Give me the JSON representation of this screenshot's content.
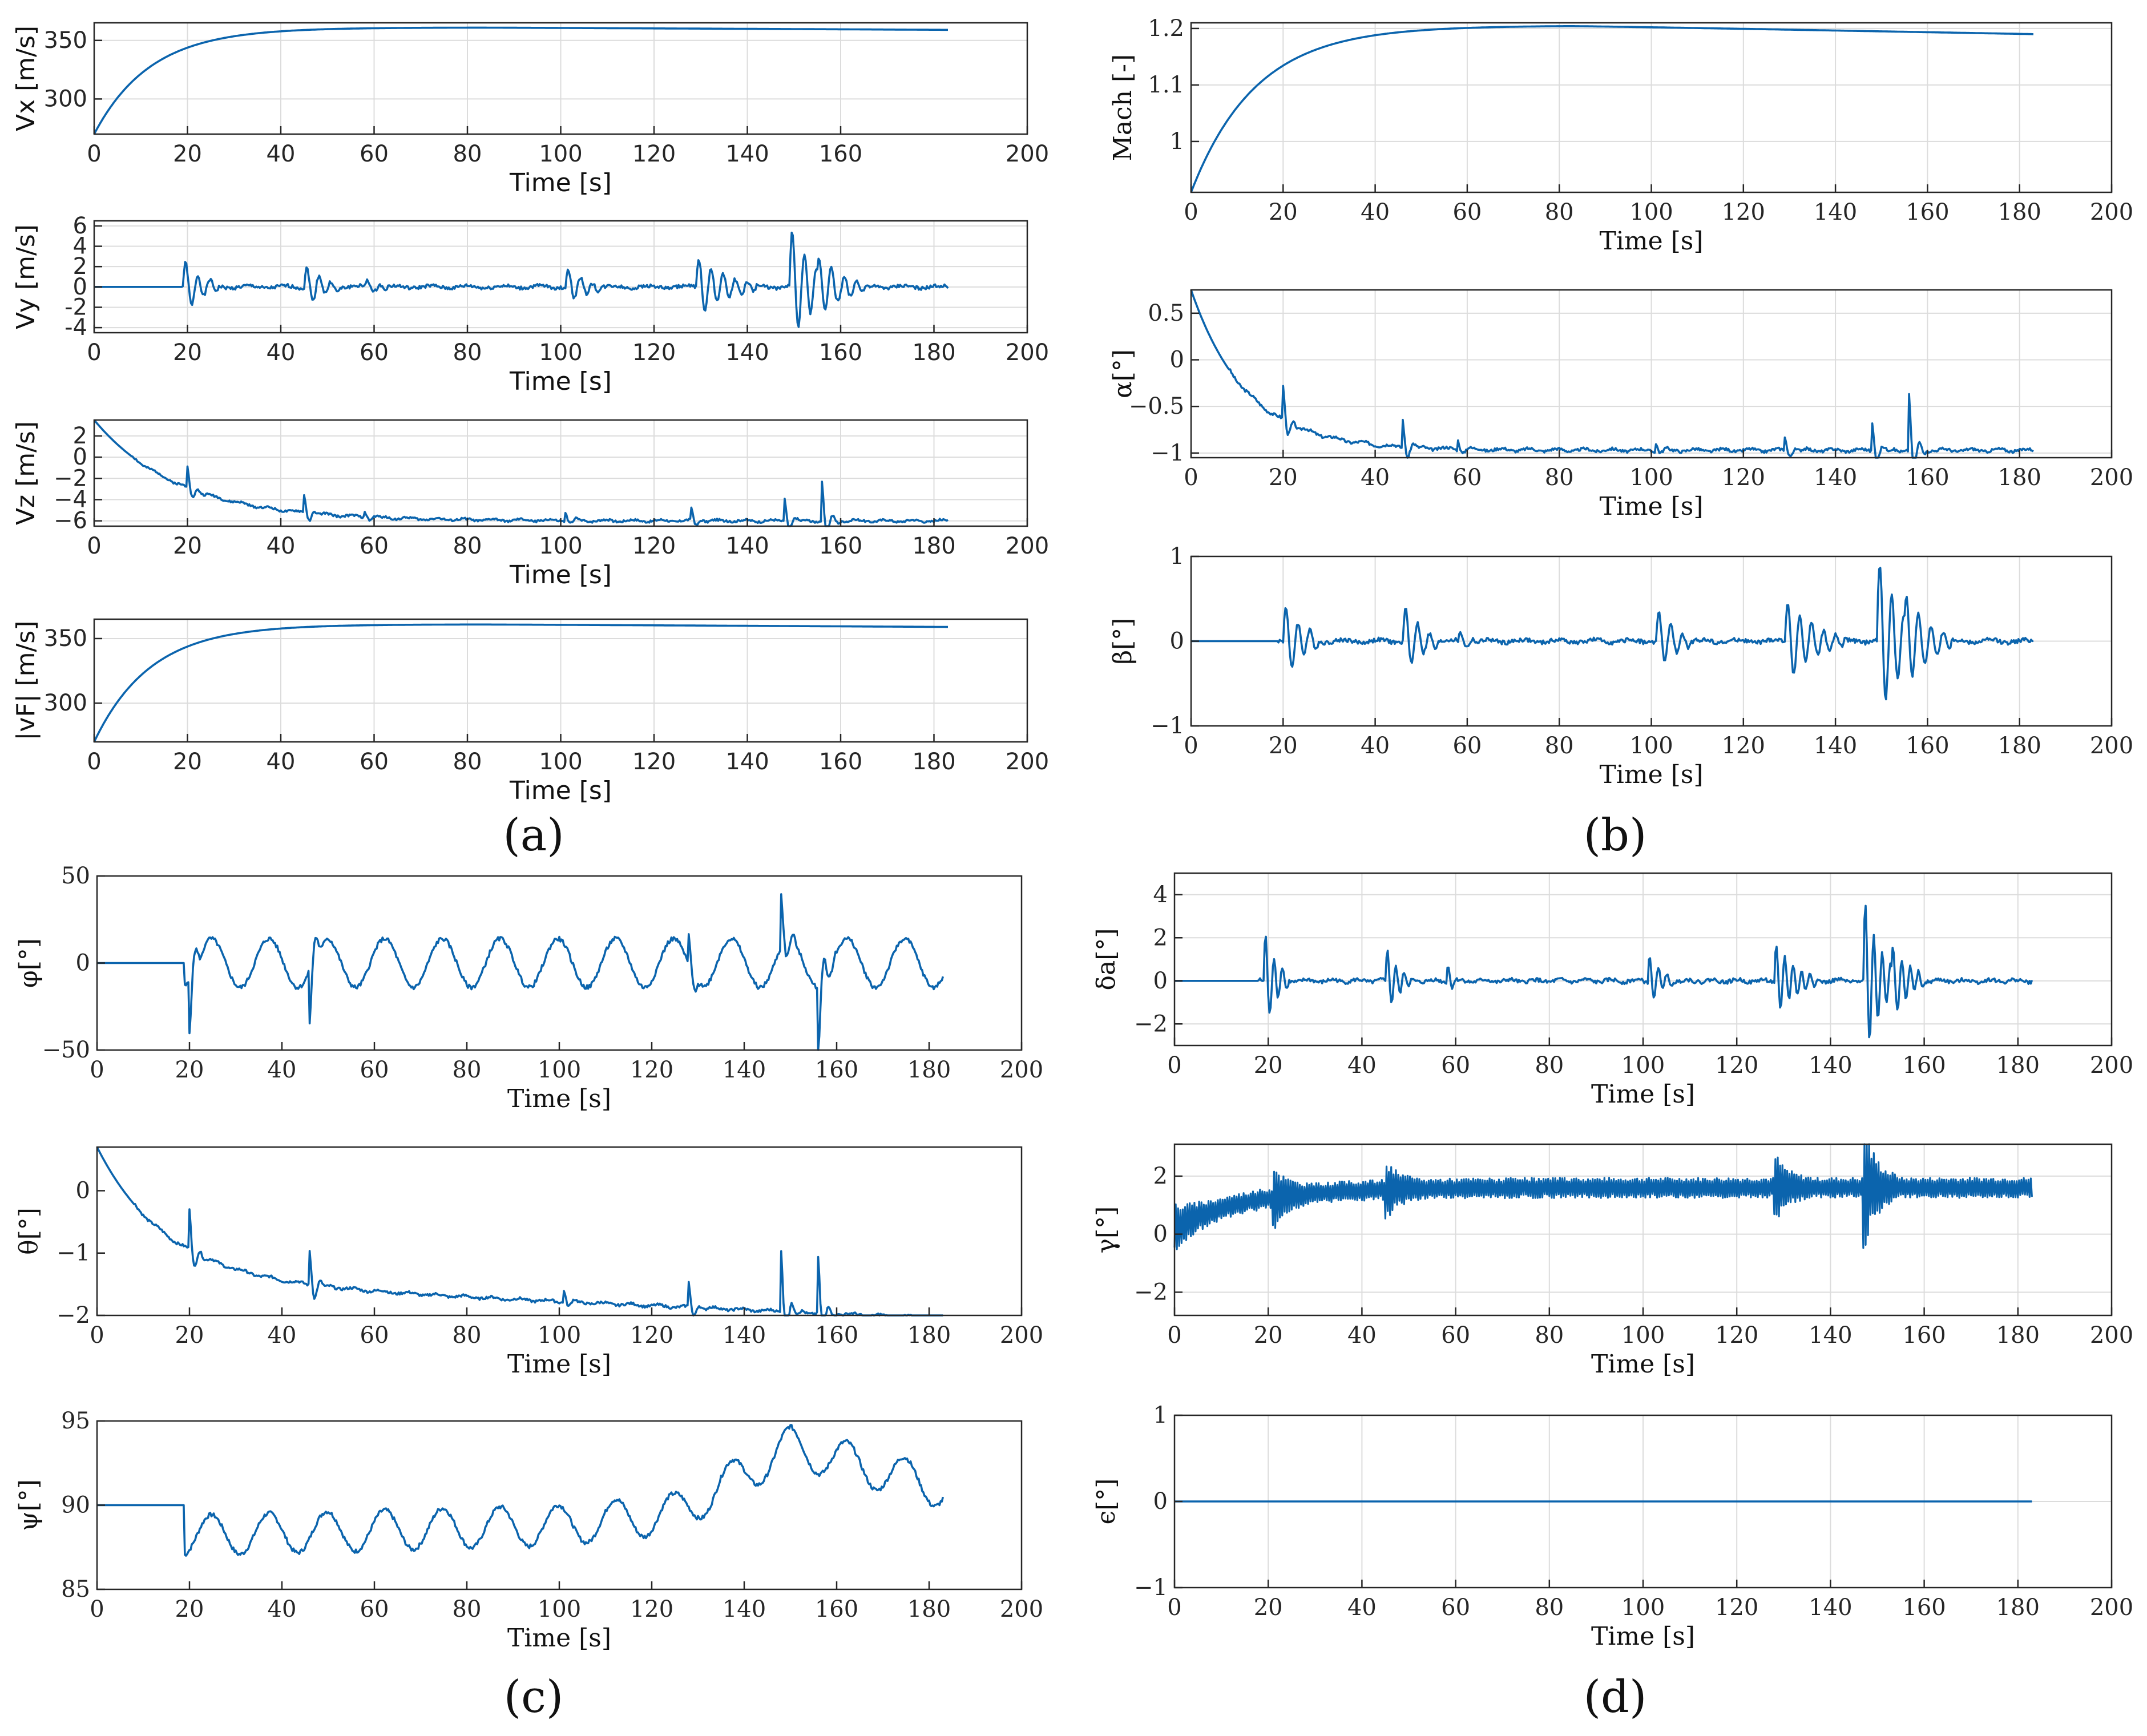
{
  "figure": {
    "line_color": "#0b64ad",
    "grid_color": "#dcdcdc",
    "axis_color": "#262626",
    "panel_labels": [
      "(a)",
      "(b)",
      "(c)",
      "(d)"
    ]
  },
  "chart_data": [
    {
      "id": "vx",
      "panel": "a",
      "type": "line",
      "font": "sans",
      "ylabel": "Vx [m/s]",
      "xlabel": "Time [s]",
      "xlim": [
        0,
        200
      ],
      "ylim": [
        270,
        365
      ],
      "xticks": [
        0,
        20,
        40,
        60,
        80,
        100,
        120,
        140,
        160,
        200
      ],
      "xtick_labels": [
        "0",
        "20",
        "40",
        "60",
        "80",
        "100",
        "120",
        "140",
        "160",
        "200"
      ],
      "yticks": [
        300,
        350
      ],
      "ytick_labels": [
        "300",
        "350"
      ],
      "grid": true,
      "series": {
        "kind": "exp",
        "y0": 270,
        "yinf": 361,
        "tau": 12,
        "t1": 183,
        "end": 359,
        "samples": "0–183 s smooth exponential rise"
      }
    },
    {
      "id": "vy",
      "panel": "a",
      "type": "line",
      "font": "sans",
      "ylabel": "Vy [m/s]",
      "xlabel": "Time [s]",
      "xlim": [
        0,
        200
      ],
      "ylim": [
        -4.5,
        6.5
      ],
      "xticks": [
        0,
        20,
        40,
        60,
        80,
        100,
        120,
        140,
        160,
        180,
        200
      ],
      "xtick_labels": [
        "0",
        "20",
        "40",
        "60",
        "80",
        "100",
        "120",
        "140",
        "160",
        "180",
        "200"
      ],
      "yticks": [
        -4,
        -2,
        0,
        2,
        4,
        6
      ],
      "ytick_labels": [
        "-4",
        "-2",
        "0",
        "2",
        "4",
        "6"
      ],
      "grid": true,
      "series": {
        "kind": "osc",
        "base": 0,
        "t0": 19,
        "t1": 183,
        "seed": 1,
        "noise": 0.35,
        "period": 2.6,
        "bursts": [
          [
            19,
            2.8,
            3
          ],
          [
            45,
            2.3,
            3
          ],
          [
            58,
            0.9,
            2
          ],
          [
            101,
            2.0,
            3
          ],
          [
            129,
            3.0,
            5
          ],
          [
            149,
            6.0,
            4
          ],
          [
            155,
            3.2,
            4
          ]
        ]
      }
    },
    {
      "id": "vz",
      "panel": "a",
      "type": "line",
      "font": "sans",
      "ylabel": "Vz [m/s]",
      "xlabel": "Time [s]",
      "xlim": [
        0,
        200
      ],
      "ylim": [
        -6.5,
        3.5
      ],
      "xticks": [
        0,
        20,
        40,
        60,
        80,
        100,
        120,
        140,
        160,
        180,
        200
      ],
      "xtick_labels": [
        "0",
        "20",
        "40",
        "60",
        "80",
        "100",
        "120",
        "140",
        "160",
        "180",
        "200"
      ],
      "yticks": [
        -6,
        -4,
        -2,
        0,
        2
      ],
      "ytick_labels": [
        "−6",
        "−4",
        "−2",
        "0",
        "2"
      ],
      "grid": true,
      "series": {
        "kind": "settle",
        "start": 3.5,
        "steady": -6,
        "tau": 18,
        "t1": 183,
        "seed": 2,
        "noise": 0.2,
        "period": 6,
        "spikes": [
          [
            20,
            2
          ],
          [
            45,
            1.7
          ],
          [
            58,
            0.6
          ],
          [
            101,
            0.8
          ],
          [
            128,
            1.2
          ],
          [
            148,
            2.2
          ],
          [
            156,
            3.6
          ]
        ]
      }
    },
    {
      "id": "vf",
      "panel": "a",
      "type": "line",
      "font": "sans",
      "ylabel": "|vF| [m/s]",
      "xlabel": "Time [s]",
      "xlim": [
        0,
        200
      ],
      "ylim": [
        270,
        365
      ],
      "xticks": [
        0,
        20,
        40,
        60,
        80,
        100,
        120,
        140,
        160,
        180,
        200
      ],
      "xtick_labels": [
        "0",
        "20",
        "40",
        "60",
        "80",
        "100",
        "120",
        "140",
        "160",
        "180",
        "200"
      ],
      "yticks": [
        300,
        350
      ],
      "ytick_labels": [
        "300",
        "350"
      ],
      "grid": true,
      "series": {
        "kind": "exp",
        "y0": 270,
        "yinf": 361,
        "tau": 12,
        "t1": 183,
        "end": 359
      }
    },
    {
      "id": "mach",
      "panel": "b",
      "type": "line",
      "font": "serif",
      "ylabel": "Mach [-]",
      "xlabel": "Time [s]",
      "xlim": [
        0,
        200
      ],
      "ylim": [
        0.91,
        1.21
      ],
      "xticks": [
        0,
        20,
        40,
        60,
        80,
        100,
        120,
        140,
        160,
        180,
        200
      ],
      "xtick_labels": [
        "0",
        "20",
        "40",
        "60",
        "80",
        "100",
        "120",
        "140",
        "160",
        "180",
        "200"
      ],
      "yticks": [
        1,
        1.1,
        1.2
      ],
      "ytick_labels": [
        "1",
        "1.1",
        "1.2"
      ],
      "grid": true,
      "series": {
        "kind": "exp",
        "y0": 0.91,
        "yinf": 1.205,
        "tau": 14,
        "t1": 183,
        "end": 1.19
      }
    },
    {
      "id": "alpha",
      "panel": "b",
      "type": "line",
      "font": "serif",
      "ylabel": "α[°]",
      "xlabel": "Time [s]",
      "xlim": [
        0,
        200
      ],
      "ylim": [
        -1.05,
        0.75
      ],
      "xticks": [
        0,
        20,
        40,
        60,
        80,
        100,
        120,
        140,
        160,
        180,
        200
      ],
      "xtick_labels": [
        "0",
        "20",
        "40",
        "60",
        "80",
        "100",
        "120",
        "140",
        "160",
        "180",
        "200"
      ],
      "yticks": [
        -1,
        -0.5,
        0,
        0.5
      ],
      "ytick_labels": [
        "−1",
        "−0.5",
        "0",
        "0.5"
      ],
      "grid": true,
      "series": {
        "kind": "settle",
        "start": 0.75,
        "steady": -0.97,
        "tau": 12,
        "t1": 183,
        "seed": 3,
        "noise": 0.03,
        "period": 6,
        "spikes": [
          [
            20,
            0.35
          ],
          [
            46,
            0.3
          ],
          [
            58,
            0.1
          ],
          [
            101,
            0.08
          ],
          [
            129,
            0.15
          ],
          [
            148,
            0.3
          ],
          [
            156,
            0.6
          ]
        ]
      }
    },
    {
      "id": "beta",
      "panel": "b",
      "type": "line",
      "font": "serif",
      "ylabel": "β[°]",
      "xlabel": "Time [s]",
      "xlim": [
        0,
        200
      ],
      "ylim": [
        -1,
        1
      ],
      "xticks": [
        0,
        20,
        40,
        60,
        80,
        100,
        120,
        140,
        160,
        180,
        200
      ],
      "xtick_labels": [
        "0",
        "20",
        "40",
        "60",
        "80",
        "100",
        "120",
        "140",
        "160",
        "180",
        "200"
      ],
      "yticks": [
        -1,
        0,
        1
      ],
      "ytick_labels": [
        "−1",
        "0",
        "1"
      ],
      "grid": true,
      "series": {
        "kind": "osc",
        "base": 0,
        "t0": 19,
        "t1": 183,
        "seed": 4,
        "noise": 0.05,
        "period": 2.6,
        "bursts": [
          [
            20,
            0.5,
            3
          ],
          [
            46,
            0.45,
            3
          ],
          [
            58,
            0.12,
            2
          ],
          [
            101,
            0.4,
            3
          ],
          [
            129,
            0.5,
            5
          ],
          [
            149,
            1.0,
            4
          ],
          [
            155,
            0.6,
            4
          ]
        ]
      }
    },
    {
      "id": "phi",
      "panel": "c",
      "type": "line",
      "font": "serif",
      "ylabel": "φ[°]",
      "xlabel": "Time [s]",
      "xlim": [
        0,
        200
      ],
      "ylim": [
        -50,
        50
      ],
      "xticks": [
        0,
        20,
        40,
        60,
        80,
        100,
        120,
        140,
        160,
        180,
        200
      ],
      "xtick_labels": [
        "0",
        "20",
        "40",
        "60",
        "80",
        "100",
        "120",
        "140",
        "160",
        "180",
        "200"
      ],
      "yticks": [
        -50,
        0,
        50
      ],
      "ytick_labels": [
        "−50",
        "0",
        "50"
      ],
      "grid": false,
      "series": {
        "kind": "wave",
        "base": 0,
        "amp": 14,
        "period": 12.5,
        "t0": 19,
        "t1": 183,
        "seed": 5,
        "noise": 2.5,
        "spikes": [
          [
            20,
            -30
          ],
          [
            46,
            -30
          ],
          [
            128,
            18
          ],
          [
            148,
            30
          ],
          [
            156,
            -40
          ]
        ]
      }
    },
    {
      "id": "theta",
      "panel": "c",
      "type": "line",
      "font": "serif",
      "ylabel": "θ[°]",
      "xlabel": "Time [s]",
      "xlim": [
        0,
        200
      ],
      "ylim": [
        -2,
        0.7
      ],
      "xticks": [
        0,
        20,
        40,
        60,
        80,
        100,
        120,
        140,
        160,
        180,
        200
      ],
      "xtick_labels": [
        "0",
        "20",
        "40",
        "60",
        "80",
        "100",
        "120",
        "140",
        "160",
        "180",
        "200"
      ],
      "yticks": [
        -2,
        -1,
        0
      ],
      "ytick_labels": [
        "−2",
        "−1",
        "0"
      ],
      "grid": false,
      "series": {
        "kind": "settle",
        "start": 0.7,
        "steady": -1.45,
        "tau": 15,
        "t1": 183,
        "seed": 6,
        "noise": 0.04,
        "period": 6,
        "drift": -0.6,
        "spikes": [
          [
            20,
            0.65
          ],
          [
            46,
            0.55
          ],
          [
            101,
            0.2
          ],
          [
            128,
            0.4
          ],
          [
            148,
            1.0
          ],
          [
            156,
            0.9
          ]
        ]
      }
    },
    {
      "id": "psi",
      "panel": "c",
      "type": "line",
      "font": "serif",
      "ylabel": "ψ[°]",
      "xlabel": "Time [s]",
      "xlim": [
        0,
        200
      ],
      "ylim": [
        85,
        95
      ],
      "xticks": [
        0,
        20,
        40,
        60,
        80,
        100,
        120,
        140,
        160,
        180,
        200
      ],
      "xtick_labels": [
        "0",
        "20",
        "40",
        "60",
        "80",
        "100",
        "120",
        "140",
        "160",
        "180",
        "200"
      ],
      "yticks": [
        85,
        90,
        95
      ],
      "ytick_labels": [
        "85",
        "90",
        "95"
      ],
      "grid": false,
      "series": {
        "kind": "wave",
        "base": 88.2,
        "amp": 1.2,
        "period": 12.5,
        "t0": 19,
        "t1": 183,
        "seed": 7,
        "noise": 0.25,
        "start": 90,
        "trend": [
          [
            20,
            88.2
          ],
          [
            100,
            88.8
          ],
          [
            125,
            89.5
          ],
          [
            150,
            93.5
          ],
          [
            183,
            91
          ]
        ]
      }
    },
    {
      "id": "delta_a",
      "panel": "d",
      "type": "line",
      "font": "serif",
      "ylabel": "δa[°]",
      "xlabel": "Time [s]",
      "xlim": [
        0,
        200
      ],
      "ylim": [
        -3,
        5
      ],
      "xticks": [
        0,
        20,
        40,
        60,
        80,
        100,
        120,
        140,
        160,
        180,
        200
      ],
      "xtick_labels": [
        "0",
        "20",
        "40",
        "60",
        "80",
        "100",
        "120",
        "140",
        "160",
        "180",
        "200"
      ],
      "yticks": [
        -2,
        0,
        2,
        4
      ],
      "ytick_labels": [
        "−2",
        "0",
        "2",
        "4"
      ],
      "grid": true,
      "series": {
        "kind": "osc",
        "base": 0,
        "t0": 18,
        "t1": 183,
        "seed": 8,
        "noise": 0.18,
        "period": 1.8,
        "bursts": [
          [
            19,
            2.5,
            3
          ],
          [
            45,
            1.6,
            3
          ],
          [
            58,
            1.2,
            1
          ],
          [
            101,
            1.4,
            3
          ],
          [
            128,
            1.8,
            5
          ],
          [
            147,
            4.0,
            4
          ],
          [
            153,
            2.0,
            4
          ]
        ]
      }
    },
    {
      "id": "gamma",
      "panel": "d",
      "type": "line",
      "font": "serif",
      "ylabel": "γ[°]",
      "xlabel": "Time [s]",
      "xlim": [
        0,
        200
      ],
      "ylim": [
        -2.8,
        3.1
      ],
      "xticks": [
        0,
        20,
        40,
        60,
        80,
        100,
        120,
        140,
        160,
        180,
        200
      ],
      "xtick_labels": [
        "0",
        "20",
        "40",
        "60",
        "80",
        "100",
        "120",
        "140",
        "160",
        "180",
        "200"
      ],
      "yticks": [
        -2,
        0,
        2
      ],
      "ytick_labels": [
        "−2",
        "0",
        "2"
      ],
      "grid": true,
      "series": {
        "kind": "band",
        "t1": 183,
        "seed": 9,
        "steady": 1.6,
        "start": 0.2,
        "tau": 15,
        "width": 0.35,
        "bursts": [
          [
            21,
            1.0
          ],
          [
            45,
            0.8
          ],
          [
            128,
            1.0
          ],
          [
            147,
            2.2
          ]
        ]
      }
    },
    {
      "id": "epsilon",
      "panel": "d",
      "type": "line",
      "font": "serif",
      "ylabel": "ϵ[°]",
      "xlabel": "Time [s]",
      "xlim": [
        0,
        200
      ],
      "ylim": [
        -1,
        1
      ],
      "xticks": [
        0,
        20,
        40,
        60,
        80,
        100,
        120,
        140,
        160,
        180,
        200
      ],
      "xtick_labels": [
        "0",
        "20",
        "40",
        "60",
        "80",
        "100",
        "120",
        "140",
        "160",
        "180",
        "200"
      ],
      "yticks": [
        -1,
        0,
        1
      ],
      "ytick_labels": [
        "−1",
        "0",
        "1"
      ],
      "grid": true,
      "series": {
        "kind": "flat",
        "value": 0,
        "t1": 183
      }
    }
  ]
}
